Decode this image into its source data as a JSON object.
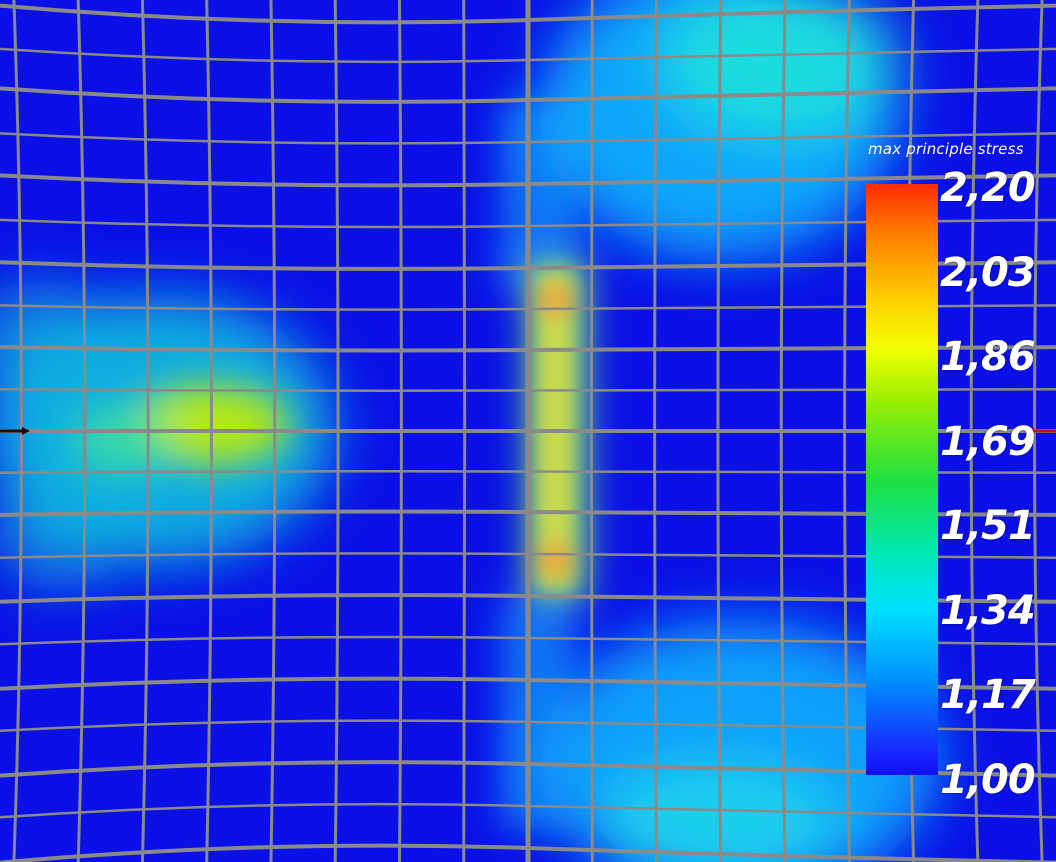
{
  "colorbar": {
    "title": "max principle stress",
    "ticks": [
      "2,20",
      "2,03",
      "1,86",
      "1,69",
      "1,51",
      "1,34",
      "1,17",
      "1,00"
    ],
    "min": 1.0,
    "max": 2.2
  },
  "colors": {
    "background_low": "#0a10e6",
    "grid_line": "#8a8a8a",
    "scale_high": "#ff2a00",
    "scale_mid": "#20e040",
    "scale_low": "#1010f0"
  },
  "stress_hotspots": [
    {
      "region": "left-center",
      "level": 1.78
    },
    {
      "region": "left-mid",
      "level": 1.35
    },
    {
      "region": "center-seam-upper",
      "level": 1.8
    },
    {
      "region": "center-seam-lower",
      "level": 1.85
    },
    {
      "region": "upper-right",
      "level": 1.38
    },
    {
      "region": "lower-right",
      "level": 1.3
    }
  ]
}
